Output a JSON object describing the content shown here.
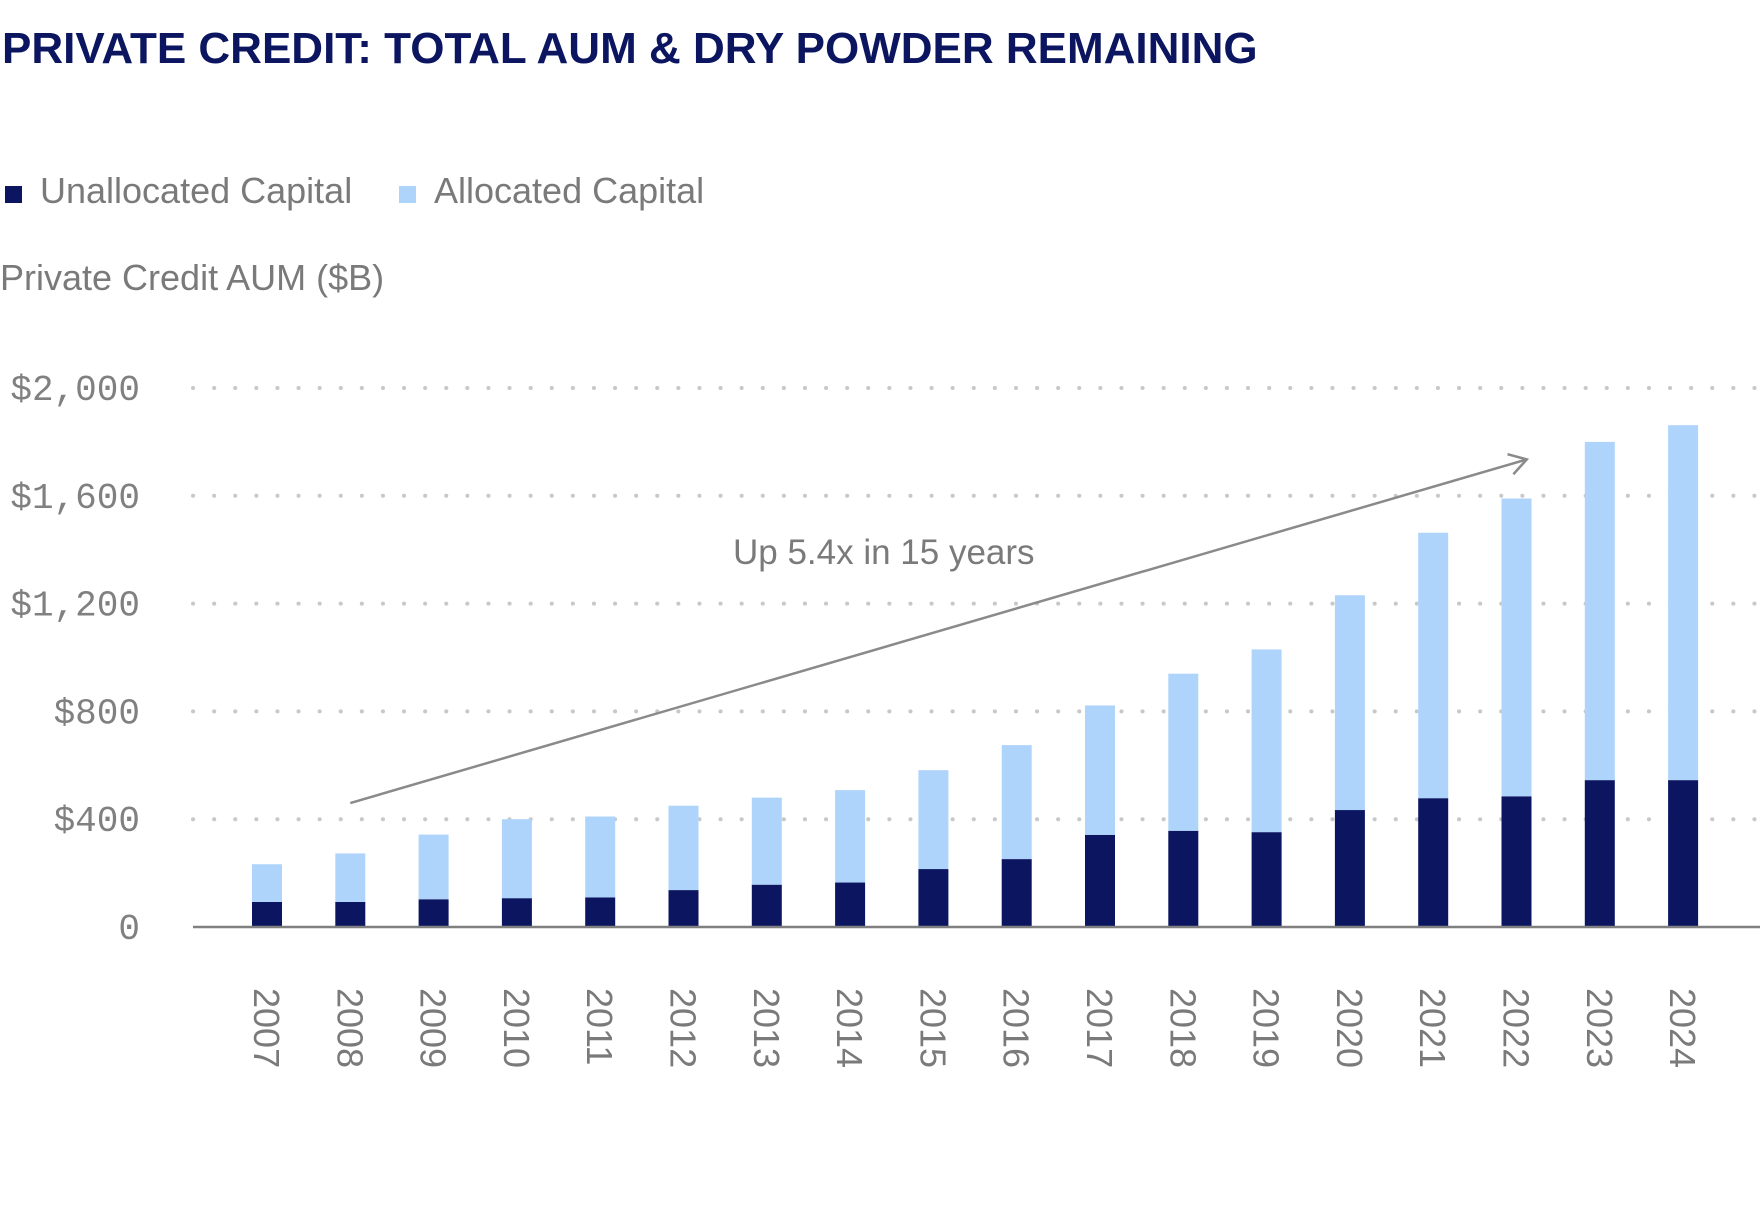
{
  "chart_data": {
    "type": "bar",
    "stacked": true,
    "title": "PRIVATE CREDIT: TOTAL AUM & DRY POWDER REMAINING",
    "ylabel": "Private Credit AUM ($B)",
    "xlabel": "",
    "categories": [
      "2007",
      "2008",
      "2009",
      "2010",
      "2011",
      "2012",
      "2013",
      "2014",
      "2015",
      "2016",
      "2017",
      "2018",
      "2019",
      "2020",
      "2021",
      "2022",
      "2023",
      "2024"
    ],
    "series": [
      {
        "name": "Unallocated Capital",
        "color": "#0b1560",
        "values": [
          93,
          93,
          103,
          107,
          110,
          137,
          157,
          165,
          215,
          252,
          342,
          357,
          352,
          434,
          478,
          485,
          545,
          545
        ]
      },
      {
        "name": "Allocated Capital",
        "color": "#afd4fb",
        "values": [
          140,
          180,
          240,
          293,
          300,
          313,
          323,
          343,
          367,
          423,
          480,
          583,
          678,
          797,
          985,
          1105,
          1255,
          1317
        ]
      }
    ],
    "ylim": [
      0,
      2000
    ],
    "yticks": [
      0,
      400,
      800,
      1200,
      1600,
      2000
    ],
    "ytick_labels": [
      "0",
      "$400",
      "$800",
      "$1,200",
      "$1,600",
      "$2,000"
    ],
    "grid": true,
    "legend_position": "top-left",
    "annotation": {
      "text": "Up 5.4x in 15 years",
      "arrow_from": {
        "x": "2008",
        "y": 460
      },
      "arrow_to": {
        "x": "2023",
        "y": 1735
      }
    },
    "colors": {
      "title": "#0b1560",
      "axis": "#808080",
      "grid": "#c8c8c8",
      "arrow": "#8a8a8a"
    }
  }
}
